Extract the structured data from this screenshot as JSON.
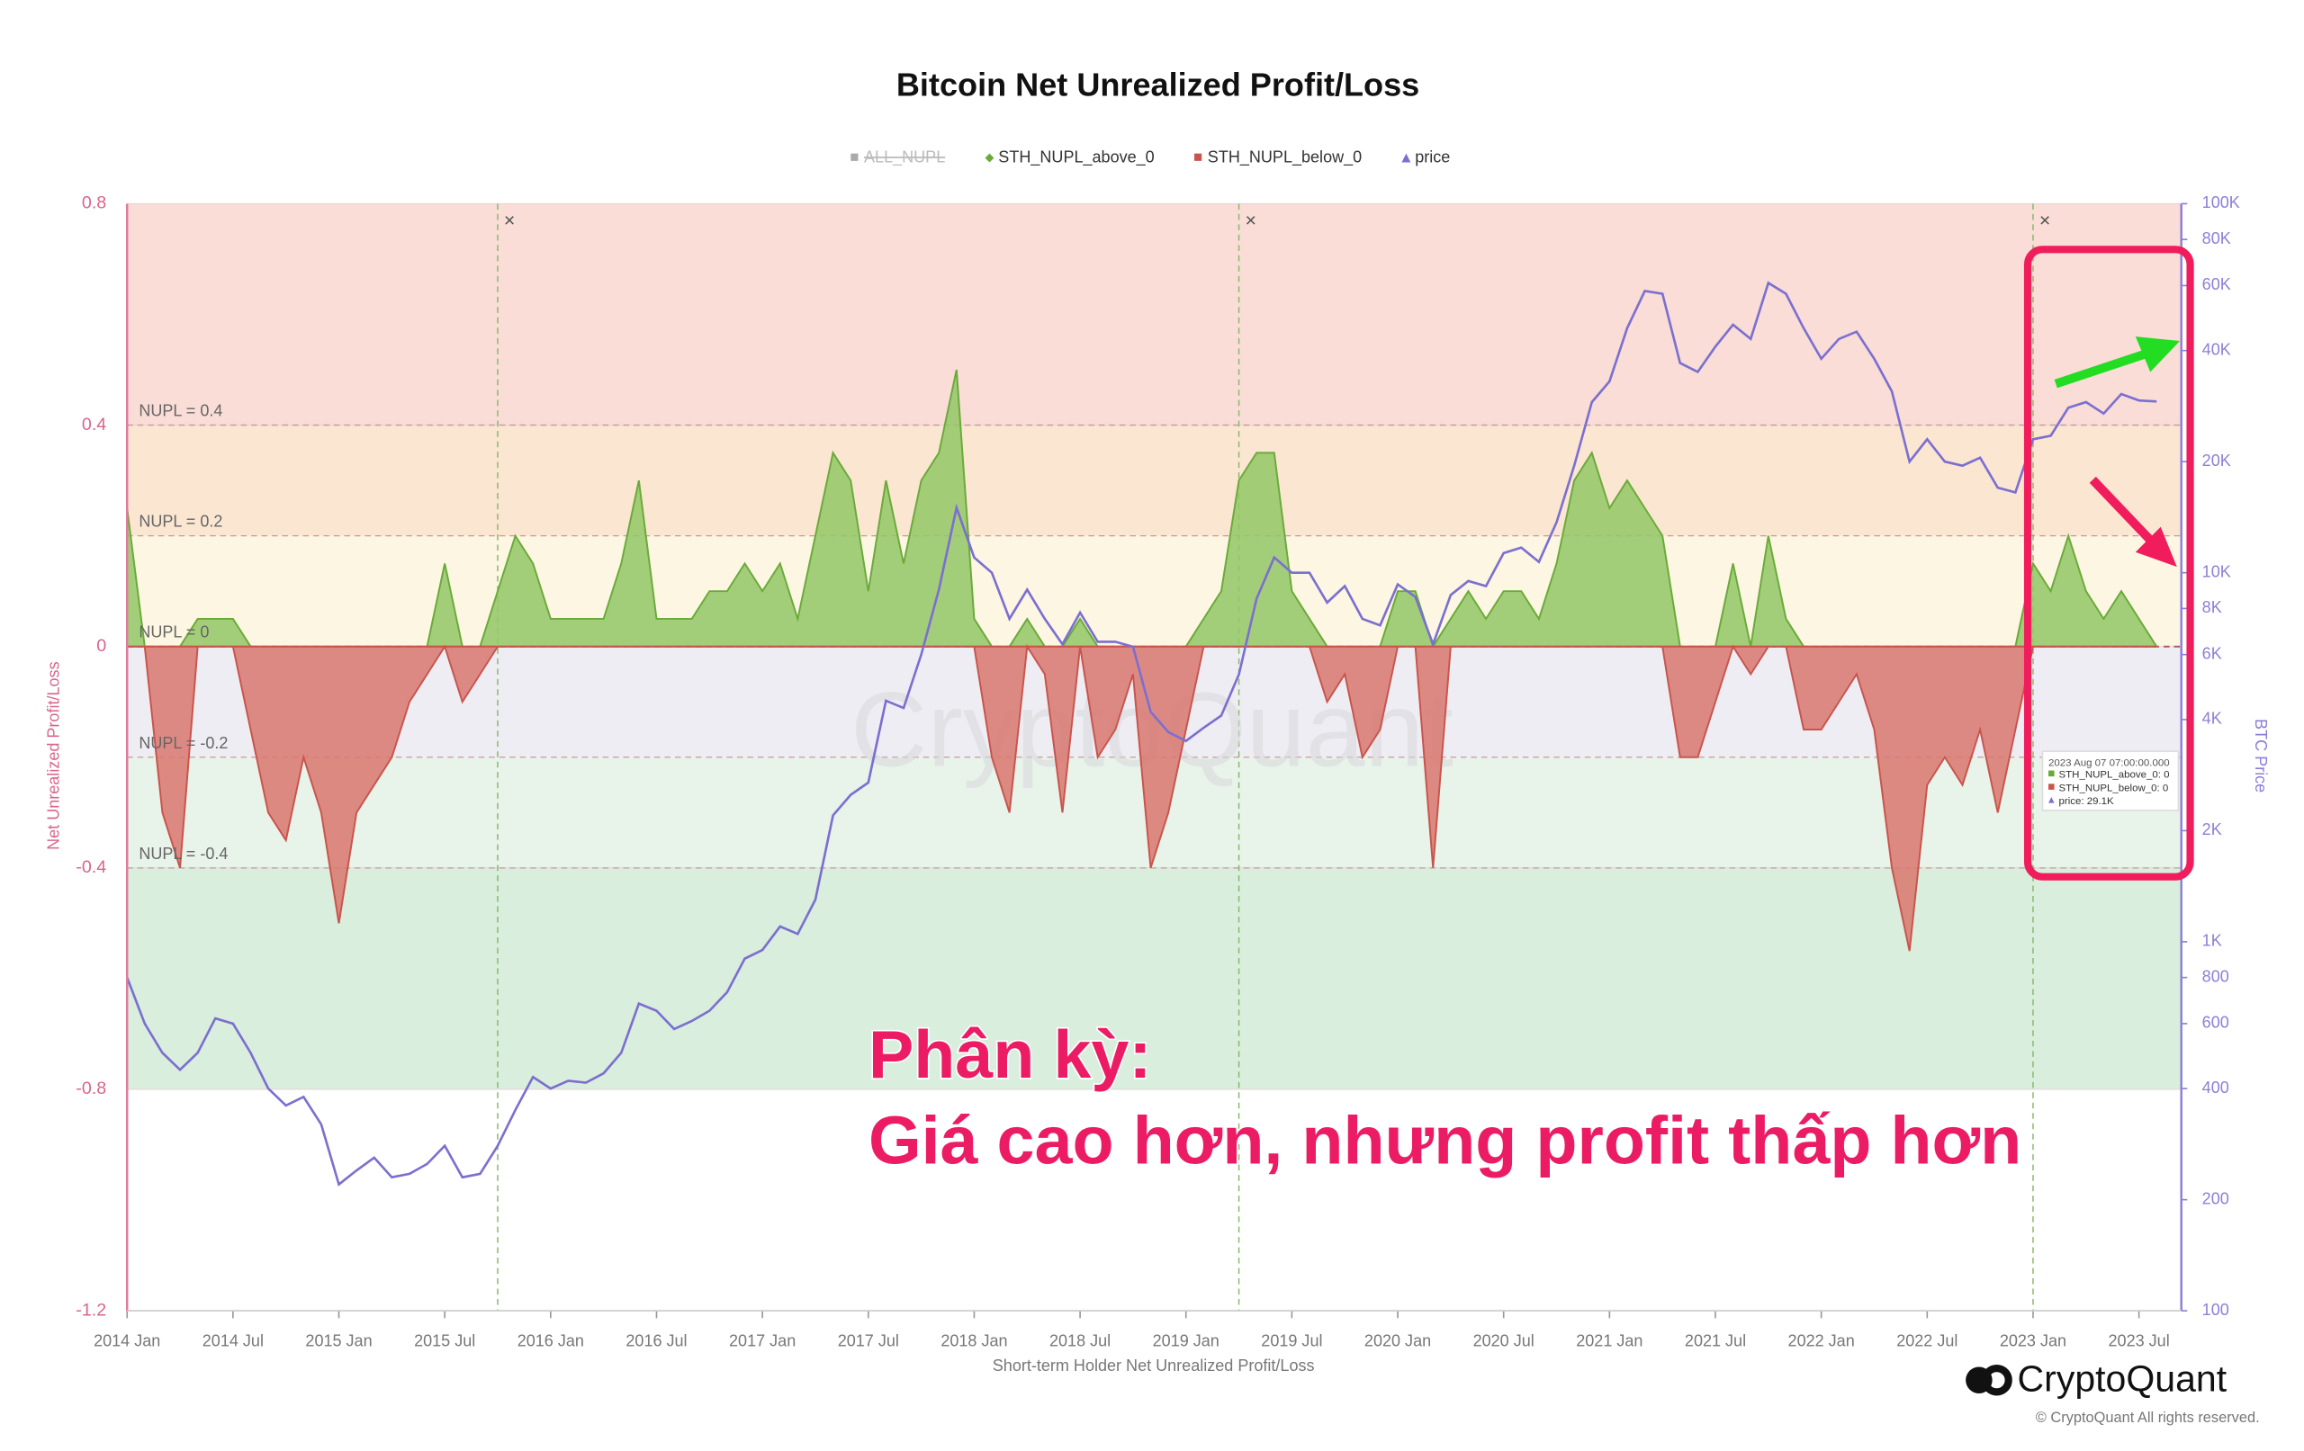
{
  "chart_data": {
    "type": "area",
    "title": "Bitcoin Net Unrealized Profit/Loss",
    "x_label": "Short-term Holder Net Unrealized Profit/Loss",
    "y_label": "Net Unrealized Profit/Loss",
    "y2_label": "BTC Price",
    "watermark": "CryptoQuant",
    "brand": "CryptoQuant",
    "copyright": "© CryptoQuant All rights reserved.",
    "annotations": [
      "Phân kỳ:",
      "Giá cao hơn, nhưng profit thấp hơn"
    ],
    "levels": [
      {
        "value": 0.4,
        "label": "NUPL = 0.4"
      },
      {
        "value": 0.2,
        "label": "NUPL = 0.2"
      },
      {
        "value": 0,
        "label": "NUPL = 0"
      },
      {
        "value": -0.2,
        "label": "NUPL = -0.2"
      },
      {
        "value": -0.4,
        "label": "NUPL = -0.4"
      }
    ],
    "bands": [
      {
        "from": 0.8,
        "to": 0.4,
        "color": "#f9ddd6"
      },
      {
        "from": 0.4,
        "to": 0.2,
        "color": "#fbe6d2"
      },
      {
        "from": 0.2,
        "to": 0,
        "color": "#fdf6e3"
      },
      {
        "from": 0,
        "to": -0.2,
        "color": "#eeedf3"
      },
      {
        "from": -0.2,
        "to": -0.4,
        "color": "#e8f3ea"
      },
      {
        "from": -0.4,
        "to": -0.8,
        "color": "#d9eedd"
      }
    ],
    "event_lines": [
      "2015-10",
      "2019-04",
      "2023-01"
    ],
    "event_label": "×",
    "tooltip": [
      "2023 Aug 07 07:00:00.000",
      "STH_NUPL_above_0: 0",
      "STH_NUPL_below_0: 0",
      "price: 29.1K"
    ],
    "x": [
      "2014-01",
      "2014-02",
      "2014-03",
      "2014-04",
      "2014-05",
      "2014-06",
      "2014-07",
      "2014-08",
      "2014-09",
      "2014-10",
      "2014-11",
      "2014-12",
      "2015-01",
      "2015-02",
      "2015-03",
      "2015-04",
      "2015-05",
      "2015-06",
      "2015-07",
      "2015-08",
      "2015-09",
      "2015-10",
      "2015-11",
      "2015-12",
      "2016-01",
      "2016-02",
      "2016-03",
      "2016-04",
      "2016-05",
      "2016-06",
      "2016-07",
      "2016-08",
      "2016-09",
      "2016-10",
      "2016-11",
      "2016-12",
      "2017-01",
      "2017-02",
      "2017-03",
      "2017-04",
      "2017-05",
      "2017-06",
      "2017-07",
      "2017-08",
      "2017-09",
      "2017-10",
      "2017-11",
      "2017-12",
      "2018-01",
      "2018-02",
      "2018-03",
      "2018-04",
      "2018-05",
      "2018-06",
      "2018-07",
      "2018-08",
      "2018-09",
      "2018-10",
      "2018-11",
      "2018-12",
      "2019-01",
      "2019-02",
      "2019-03",
      "2019-04",
      "2019-05",
      "2019-06",
      "2019-07",
      "2019-08",
      "2019-09",
      "2019-10",
      "2019-11",
      "2019-12",
      "2020-01",
      "2020-02",
      "2020-03",
      "2020-04",
      "2020-05",
      "2020-06",
      "2020-07",
      "2020-08",
      "2020-09",
      "2020-10",
      "2020-11",
      "2020-12",
      "2021-01",
      "2021-02",
      "2021-03",
      "2021-04",
      "2021-05",
      "2021-06",
      "2021-07",
      "2021-08",
      "2021-09",
      "2021-10",
      "2021-11",
      "2021-12",
      "2022-01",
      "2022-02",
      "2022-03",
      "2022-04",
      "2022-05",
      "2022-06",
      "2022-07",
      "2022-08",
      "2022-09",
      "2022-10",
      "2022-11",
      "2022-12",
      "2023-01",
      "2023-02",
      "2023-03",
      "2023-04",
      "2023-05",
      "2023-06",
      "2023-07",
      "2023-08"
    ],
    "series": [
      {
        "name": "ALL_NUPL",
        "color": "#aaaaaa",
        "hidden": true
      },
      {
        "name": "STH_NUPL_above_0",
        "color": "#6aaa3a",
        "fill": "#93c766",
        "values": [
          0.25,
          0,
          0,
          0,
          0.05,
          0.05,
          0.05,
          0,
          0,
          0,
          0,
          0,
          0,
          0,
          0,
          0,
          0,
          0,
          0.15,
          0,
          0,
          0.1,
          0.2,
          0.15,
          0.05,
          0.05,
          0.05,
          0.05,
          0.15,
          0.3,
          0.05,
          0.05,
          0.05,
          0.1,
          0.1,
          0.15,
          0.1,
          0.15,
          0.05,
          0.2,
          0.35,
          0.3,
          0.1,
          0.3,
          0.15,
          0.3,
          0.35,
          0.5,
          0.05,
          0,
          0,
          0.05,
          0,
          0,
          0.05,
          0,
          0,
          0,
          0,
          0,
          0,
          0.05,
          0.1,
          0.3,
          0.35,
          0.35,
          0.1,
          0.05,
          0,
          0,
          0,
          0,
          0.1,
          0.1,
          0,
          0.05,
          0.1,
          0.05,
          0.1,
          0.1,
          0.05,
          0.15,
          0.3,
          0.35,
          0.25,
          0.3,
          0.25,
          0.2,
          0,
          0,
          0,
          0.15,
          0,
          0.2,
          0.05,
          0,
          0,
          0,
          0,
          0,
          0,
          0,
          0,
          0,
          0,
          0,
          0,
          0,
          0.15,
          0.1,
          0.2,
          0.1,
          0.05,
          0.1,
          0.05,
          0
        ]
      },
      {
        "name": "STH_NUPL_below_0",
        "color": "#c9544c",
        "fill": "#d9776f",
        "values": [
          0,
          0,
          -0.3,
          -0.4,
          0,
          0,
          0,
          -0.15,
          -0.3,
          -0.35,
          -0.2,
          -0.3,
          -0.5,
          -0.3,
          -0.25,
          -0.2,
          -0.1,
          -0.05,
          0,
          -0.1,
          -0.05,
          0,
          0,
          0,
          0,
          0,
          0,
          0,
          0,
          0,
          0,
          0,
          0,
          0,
          0,
          0,
          0,
          0,
          0,
          0,
          0,
          0,
          0,
          0,
          0,
          0,
          0,
          0,
          0,
          -0.2,
          -0.3,
          0,
          -0.05,
          -0.3,
          0,
          -0.2,
          -0.15,
          -0.05,
          -0.4,
          -0.3,
          -0.15,
          0,
          0,
          0,
          0,
          0,
          0,
          0,
          -0.1,
          -0.05,
          -0.2,
          -0.15,
          0,
          0,
          -0.4,
          0,
          0,
          0,
          0,
          0,
          0,
          0,
          0,
          0,
          0,
          0,
          0,
          0,
          -0.2,
          -0.2,
          -0.1,
          0,
          -0.05,
          0,
          0,
          -0.15,
          -0.15,
          -0.1,
          -0.05,
          -0.15,
          -0.4,
          -0.55,
          -0.25,
          -0.2,
          -0.25,
          -0.15,
          -0.3,
          -0.15,
          0,
          0,
          0,
          0,
          0,
          0,
          0,
          0
        ]
      },
      {
        "name": "price",
        "color": "#7b6fd0",
        "axis": "y2",
        "values": [
          800,
          600,
          500,
          450,
          500,
          620,
          600,
          500,
          400,
          360,
          380,
          320,
          220,
          240,
          260,
          230,
          235,
          250,
          280,
          230,
          235,
          280,
          350,
          430,
          400,
          420,
          415,
          440,
          500,
          680,
          650,
          580,
          610,
          650,
          730,
          900,
          950,
          1100,
          1050,
          1300,
          2200,
          2500,
          2700,
          4500,
          4300,
          6000,
          9000,
          15000,
          11000,
          10000,
          7500,
          9000,
          7500,
          6400,
          7800,
          6500,
          6500,
          6300,
          4200,
          3700,
          3500,
          3800,
          4100,
          5300,
          8500,
          11000,
          10000,
          10000,
          8300,
          9200,
          7500,
          7200,
          9300,
          8600,
          6400,
          8700,
          9500,
          9200,
          11300,
          11700,
          10700,
          13700,
          19500,
          29000,
          33000,
          46000,
          58000,
          57000,
          37000,
          35000,
          41000,
          47000,
          43000,
          61000,
          57000,
          46000,
          38000,
          43000,
          45000,
          38000,
          31000,
          20000,
          23000,
          20000,
          19500,
          20500,
          17000,
          16500,
          23000,
          23500,
          28000,
          29000,
          27000,
          30500,
          29300,
          29100
        ]
      }
    ],
    "xticks": [
      {
        "value": "2014-01",
        "label": "2014 Jan"
      },
      {
        "value": "2014-07",
        "label": "2014 Jul"
      },
      {
        "value": "2015-01",
        "label": "2015 Jan"
      },
      {
        "value": "2015-07",
        "label": "2015 Jul"
      },
      {
        "value": "2016-01",
        "label": "2016 Jan"
      },
      {
        "value": "2016-07",
        "label": "2016 Jul"
      },
      {
        "value": "2017-01",
        "label": "2017 Jan"
      },
      {
        "value": "2017-07",
        "label": "2017 Jul"
      },
      {
        "value": "2018-01",
        "label": "2018 Jan"
      },
      {
        "value": "2018-07",
        "label": "2018 Jul"
      },
      {
        "value": "2019-01",
        "label": "2019 Jan"
      },
      {
        "value": "2019-07",
        "label": "2019 Jul"
      },
      {
        "value": "2020-01",
        "label": "2020 Jan"
      },
      {
        "value": "2020-07",
        "label": "2020 Jul"
      },
      {
        "value": "2021-01",
        "label": "2021 Jan"
      },
      {
        "value": "2021-07",
        "label": "2021 Jul"
      },
      {
        "value": "2022-01",
        "label": "2022 Jan"
      },
      {
        "value": "2022-07",
        "label": "2022 Jul"
      },
      {
        "value": "2023-01",
        "label": "2023 Jan"
      },
      {
        "value": "2023-07",
        "label": "2023 Jul"
      }
    ],
    "ylim": [
      -1.2,
      0.8
    ],
    "yticks": [
      0.8,
      0.4,
      0,
      -0.4,
      -0.8,
      -1.2
    ],
    "y2lim": [
      100,
      100000
    ],
    "y2log": true,
    "y2ticks": [
      100,
      200,
      400,
      600,
      800,
      {
        "value": 1000,
        "label": "1K"
      },
      {
        "value": 2000,
        "label": "2K"
      },
      {
        "value": 4000,
        "label": "4K"
      },
      {
        "value": 6000,
        "label": "6K"
      },
      {
        "value": 8000,
        "label": "8K"
      },
      {
        "value": 10000,
        "label": "10K"
      },
      {
        "value": 20000,
        "label": "20K"
      },
      {
        "value": 40000,
        "label": "40K"
      },
      {
        "value": 60000,
        "label": "60K"
      },
      {
        "value": 80000,
        "label": "80K"
      },
      {
        "value": 100000,
        "label": "100K"
      }
    ],
    "grid": true,
    "legend": "top"
  }
}
